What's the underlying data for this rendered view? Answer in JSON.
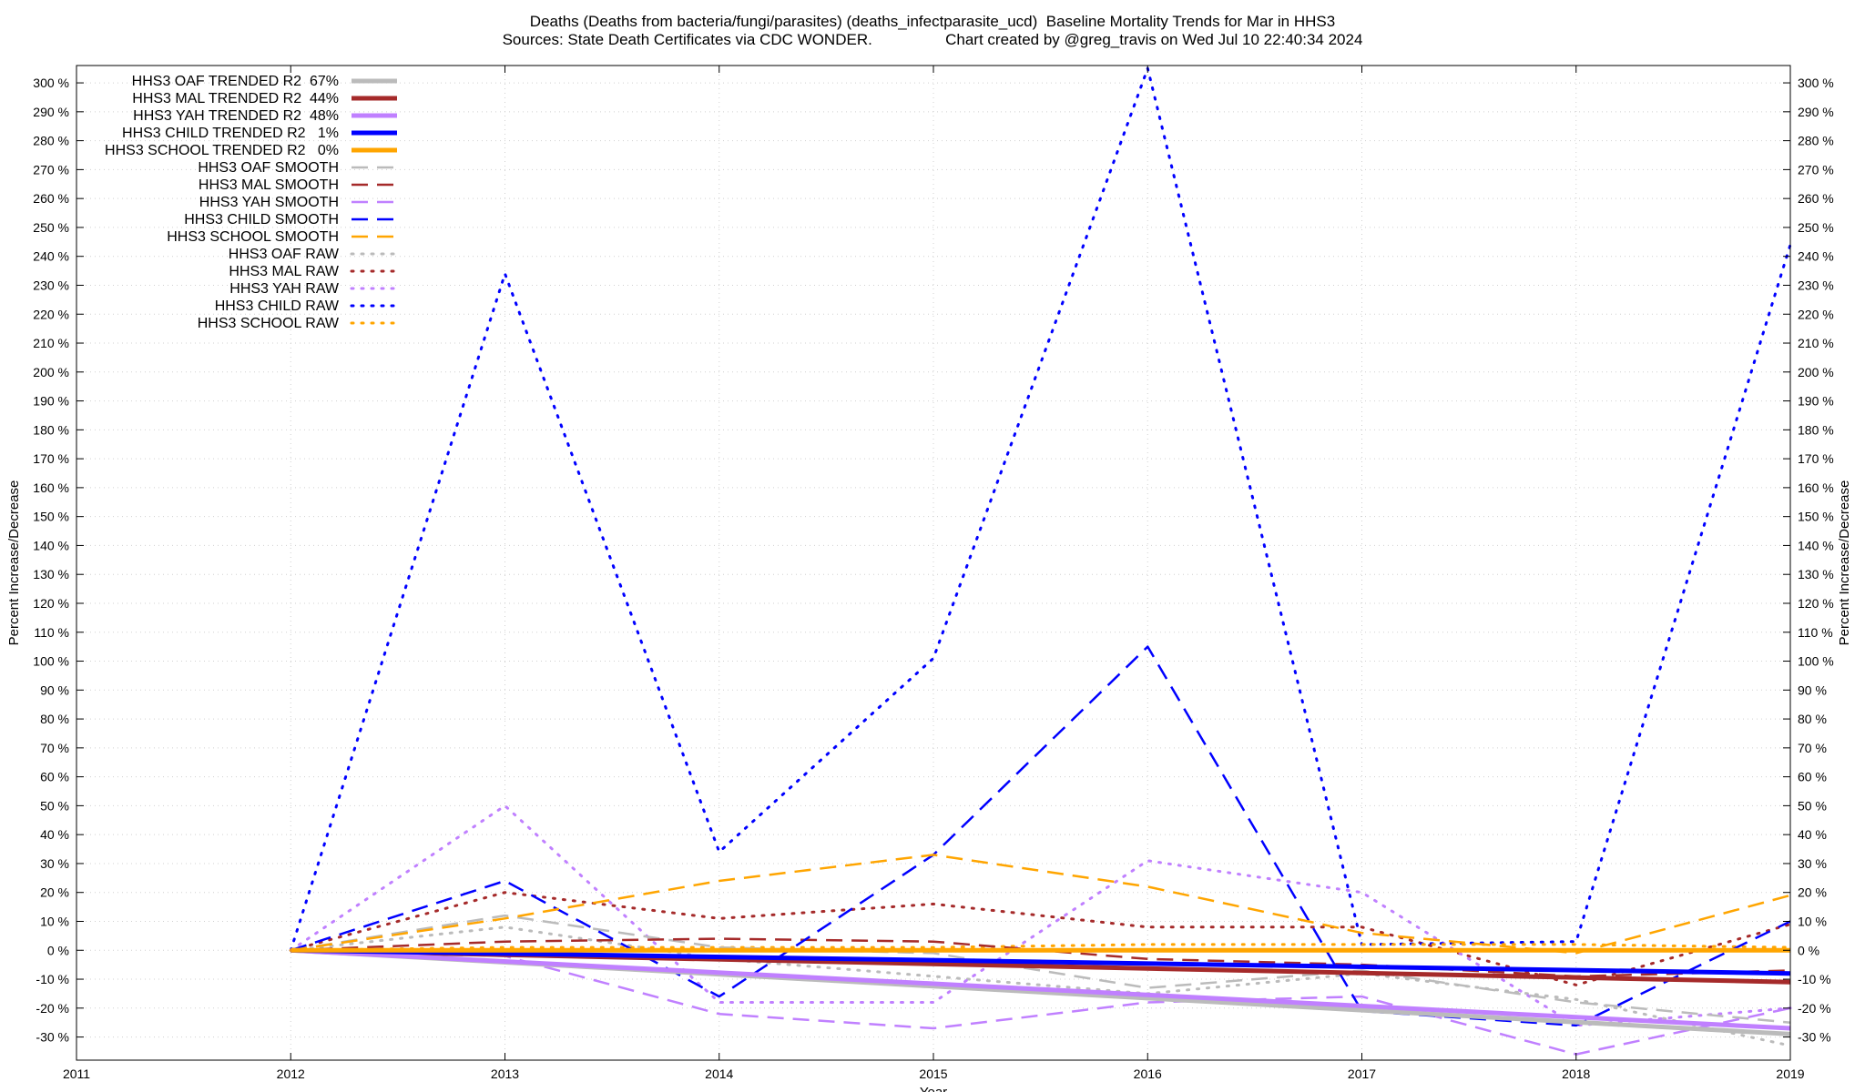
{
  "title_line_1": "Deaths (Deaths from bacteria/fungi/parasites) (deaths_infectparasite_ucd)  Baseline Mortality Trends for Mar in HHS3",
  "title_line_2": "Sources: State Death Certificates via CDC WONDER.                 Chart created by @greg_travis on Wed Jul 10 22:40:34 2024",
  "chart_data": {
    "type": "line",
    "xlabel": "Year",
    "ylabel": "Percent Increase/Decrease",
    "y2label": "Percent Increase/Decrease",
    "xlim": [
      2011,
      2019
    ],
    "ylim": [
      -38,
      306
    ],
    "x_ticks": [
      2011,
      2012,
      2013,
      2014,
      2015,
      2016,
      2017,
      2018,
      2019
    ],
    "y_ticks": [
      300,
      290,
      280,
      270,
      260,
      250,
      240,
      230,
      220,
      210,
      200,
      190,
      180,
      170,
      160,
      150,
      140,
      130,
      120,
      110,
      100,
      90,
      80,
      70,
      60,
      50,
      40,
      30,
      20,
      10,
      0,
      -10,
      -20,
      -30
    ],
    "y_tick_suffix": " %",
    "grid": true,
    "legend_position": "top-left",
    "series": [
      {
        "name": "HHS3 OAF TRENDED R2",
        "r2": "67%",
        "color": "#bbbbbb",
        "style": "solid",
        "x": [
          2012,
          2019
        ],
        "values": [
          0,
          -29
        ]
      },
      {
        "name": "HHS3 MAL TRENDED R2",
        "r2": "44%",
        "color": "#a52a2a",
        "style": "solid",
        "x": [
          2012,
          2019
        ],
        "values": [
          0,
          -11
        ]
      },
      {
        "name": "HHS3 YAH TRENDED R2",
        "r2": "48%",
        "color": "#c080ff",
        "style": "solid",
        "x": [
          2012,
          2019
        ],
        "values": [
          0,
          -27
        ]
      },
      {
        "name": "HHS3 CHILD TRENDED R2",
        "r2": "1%",
        "color": "#0000ff",
        "style": "solid",
        "x": [
          2012,
          2019
        ],
        "values": [
          0,
          -8
        ]
      },
      {
        "name": "HHS3 SCHOOL TRENDED R2",
        "r2": "0%",
        "color": "#ffa500",
        "style": "solid",
        "x": [
          2012,
          2019
        ],
        "values": [
          0,
          0
        ]
      },
      {
        "name": "HHS3 OAF SMOOTH",
        "r2": "",
        "color": "#bbbbbb",
        "style": "dashed",
        "x": [
          2012,
          2013,
          2014,
          2015,
          2016,
          2017,
          2018,
          2019
        ],
        "values": [
          0,
          12,
          1,
          -1,
          -13,
          -7,
          -18,
          -25
        ]
      },
      {
        "name": "HHS3 MAL SMOOTH",
        "r2": "",
        "color": "#a52a2a",
        "style": "dashed",
        "x": [
          2012,
          2013,
          2014,
          2015,
          2016,
          2017,
          2018,
          2019
        ],
        "values": [
          0,
          3,
          4,
          3,
          -3,
          -5,
          -9,
          -7
        ]
      },
      {
        "name": "HHS3 YAH SMOOTH",
        "r2": "",
        "color": "#c080ff",
        "style": "dashed",
        "x": [
          2012,
          2013,
          2014,
          2015,
          2016,
          2017,
          2018,
          2019
        ],
        "values": [
          0,
          -2,
          -22,
          -27,
          -18,
          -16,
          -36,
          -20
        ]
      },
      {
        "name": "HHS3 CHILD SMOOTH",
        "r2": "",
        "color": "#0000ff",
        "style": "dashed",
        "x": [
          2012,
          2013,
          2014,
          2015,
          2016,
          2017,
          2018,
          2019
        ],
        "values": [
          0,
          24,
          -16,
          33,
          105,
          -21,
          -26,
          10
        ]
      },
      {
        "name": "HHS3 SCHOOL SMOOTH",
        "r2": "",
        "color": "#ffa500",
        "style": "dashed",
        "x": [
          2012,
          2013,
          2014,
          2015,
          2016,
          2017,
          2018,
          2019
        ],
        "values": [
          0,
          11,
          24,
          33,
          22,
          6,
          -1,
          19
        ]
      },
      {
        "name": "HHS3 OAF RAW",
        "r2": "",
        "color": "#bbbbbb",
        "style": "dotted",
        "x": [
          2012,
          2013,
          2014,
          2015,
          2016,
          2017,
          2018,
          2019
        ],
        "values": [
          0,
          8,
          -3,
          -9,
          -15,
          -8,
          -17,
          -33
        ]
      },
      {
        "name": "HHS3 MAL RAW",
        "r2": "",
        "color": "#a52a2a",
        "style": "dotted",
        "x": [
          2012,
          2013,
          2014,
          2015,
          2016,
          2017,
          2018,
          2019
        ],
        "values": [
          0,
          20,
          11,
          16,
          8,
          8,
          -12,
          9
        ]
      },
      {
        "name": "HHS3 YAH RAW",
        "r2": "",
        "color": "#c080ff",
        "style": "dotted",
        "x": [
          2012,
          2013,
          2014,
          2015,
          2016,
          2017,
          2018,
          2019
        ],
        "values": [
          0,
          50,
          -18,
          -18,
          31,
          20,
          -26,
          -20
        ]
      },
      {
        "name": "HHS3 CHILD RAW",
        "r2": "",
        "color": "#0000ff",
        "style": "dotted",
        "x": [
          2012,
          2013,
          2014,
          2015,
          2016,
          2017,
          2018,
          2019
        ],
        "values": [
          0,
          234,
          34,
          101,
          305,
          2,
          3,
          244
        ]
      },
      {
        "name": "HHS3 SCHOOL RAW",
        "r2": "",
        "color": "#ffa500",
        "style": "dotted",
        "x": [
          2012,
          2013,
          2014,
          2015,
          2016,
          2017,
          2018,
          2019
        ],
        "values": [
          0,
          1,
          1,
          1,
          2,
          2,
          2,
          1
        ]
      }
    ]
  }
}
